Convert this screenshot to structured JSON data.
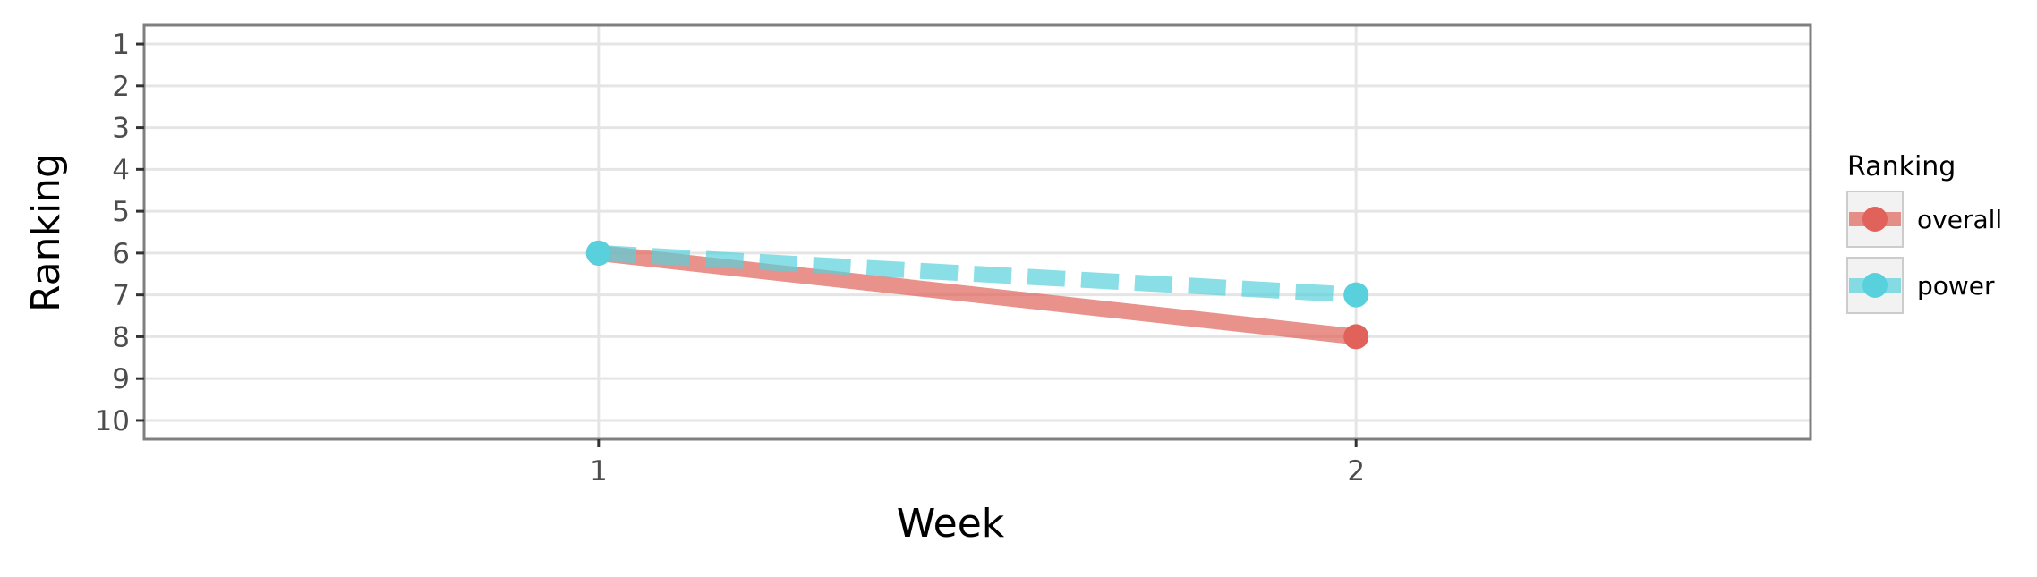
{
  "chart_data": {
    "type": "line",
    "title": "",
    "xlabel": "Week",
    "ylabel": "Ranking",
    "x": [
      1,
      2
    ],
    "x_ticks": [
      1,
      2
    ],
    "xlim": [
      0.4,
      2.6
    ],
    "y_ticks": [
      1,
      2,
      3,
      4,
      5,
      6,
      7,
      8,
      9,
      10
    ],
    "ylim": [
      0.55,
      10.45
    ],
    "y_reversed": true,
    "grid": true,
    "legend": {
      "title": "Ranking",
      "position": "right"
    },
    "series": [
      {
        "name": "overall",
        "values": [
          6,
          8
        ],
        "color": "#E0625A",
        "line_style": "solid"
      },
      {
        "name": "power",
        "values": [
          6,
          7
        ],
        "color": "#58D1DC",
        "line_style": "dashed"
      }
    ]
  }
}
